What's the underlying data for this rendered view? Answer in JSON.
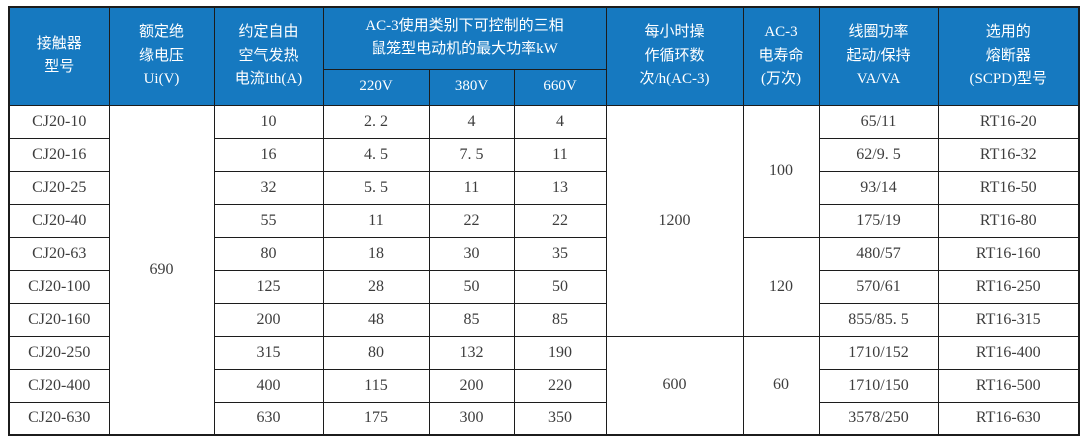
{
  "colors": {
    "header_bg": "#1679C0",
    "header_text": "#ffffff",
    "border": "#1c1c1c",
    "body_text": "#3d3d3d"
  },
  "table": {
    "headers": {
      "model": "接触器\n型号",
      "ui": "额定绝\n缘电压\nUi(V)",
      "ith": "约定自由\n空气发热\n电流Ith(A)",
      "kw_group": "AC-3使用类别下可控制的三相\n鼠笼型电动机的最大功率kW",
      "kw_sub": [
        "220V",
        "380V",
        "660V"
      ],
      "cycles": "每小时操\n作循环数\n次/h(AC-3)",
      "life": "AC-3\n电寿命\n(万次)",
      "coil": "线圈功率\n起动/保持\nVA/VA",
      "fuse": "选用的\n熔断器\n(SCPD)型号"
    },
    "merged": {
      "ui": [
        {
          "value": "690",
          "span": 10
        }
      ],
      "cycles": [
        {
          "value": "1200",
          "span": 7
        },
        {
          "value": "600",
          "span": 3
        }
      ],
      "life": [
        {
          "value": "100",
          "span": 4
        },
        {
          "value": "120",
          "span": 3
        },
        {
          "value": "60",
          "span": 3
        }
      ]
    },
    "rows": [
      {
        "model": "CJ20-10",
        "ith": "10",
        "kw220": "2. 2",
        "kw380": "4",
        "kw660": "4",
        "coil": "65/11",
        "fuse": "RT16-20"
      },
      {
        "model": "CJ20-16",
        "ith": "16",
        "kw220": "4. 5",
        "kw380": "7. 5",
        "kw660": "11",
        "coil": "62/9. 5",
        "fuse": "RT16-32"
      },
      {
        "model": "CJ20-25",
        "ith": "32",
        "kw220": "5. 5",
        "kw380": "11",
        "kw660": "13",
        "coil": "93/14",
        "fuse": "RT16-50"
      },
      {
        "model": "CJ20-40",
        "ith": "55",
        "kw220": "11",
        "kw380": "22",
        "kw660": "22",
        "coil": "175/19",
        "fuse": "RT16-80"
      },
      {
        "model": "CJ20-63",
        "ith": "80",
        "kw220": "18",
        "kw380": "30",
        "kw660": "35",
        "coil": "480/57",
        "fuse": "RT16-160"
      },
      {
        "model": "CJ20-100",
        "ith": "125",
        "kw220": "28",
        "kw380": "50",
        "kw660": "50",
        "coil": "570/61",
        "fuse": "RT16-250"
      },
      {
        "model": "CJ20-160",
        "ith": "200",
        "kw220": "48",
        "kw380": "85",
        "kw660": "85",
        "coil": "855/85. 5",
        "fuse": "RT16-315"
      },
      {
        "model": "CJ20-250",
        "ith": "315",
        "kw220": "80",
        "kw380": "132",
        "kw660": "190",
        "coil": "1710/152",
        "fuse": "RT16-400"
      },
      {
        "model": "CJ20-400",
        "ith": "400",
        "kw220": "115",
        "kw380": "200",
        "kw660": "220",
        "coil": "1710/150",
        "fuse": "RT16-500"
      },
      {
        "model": "CJ20-630",
        "ith": "630",
        "kw220": "175",
        "kw380": "300",
        "kw660": "350",
        "coil": "3578/250",
        "fuse": "RT16-630"
      }
    ]
  }
}
